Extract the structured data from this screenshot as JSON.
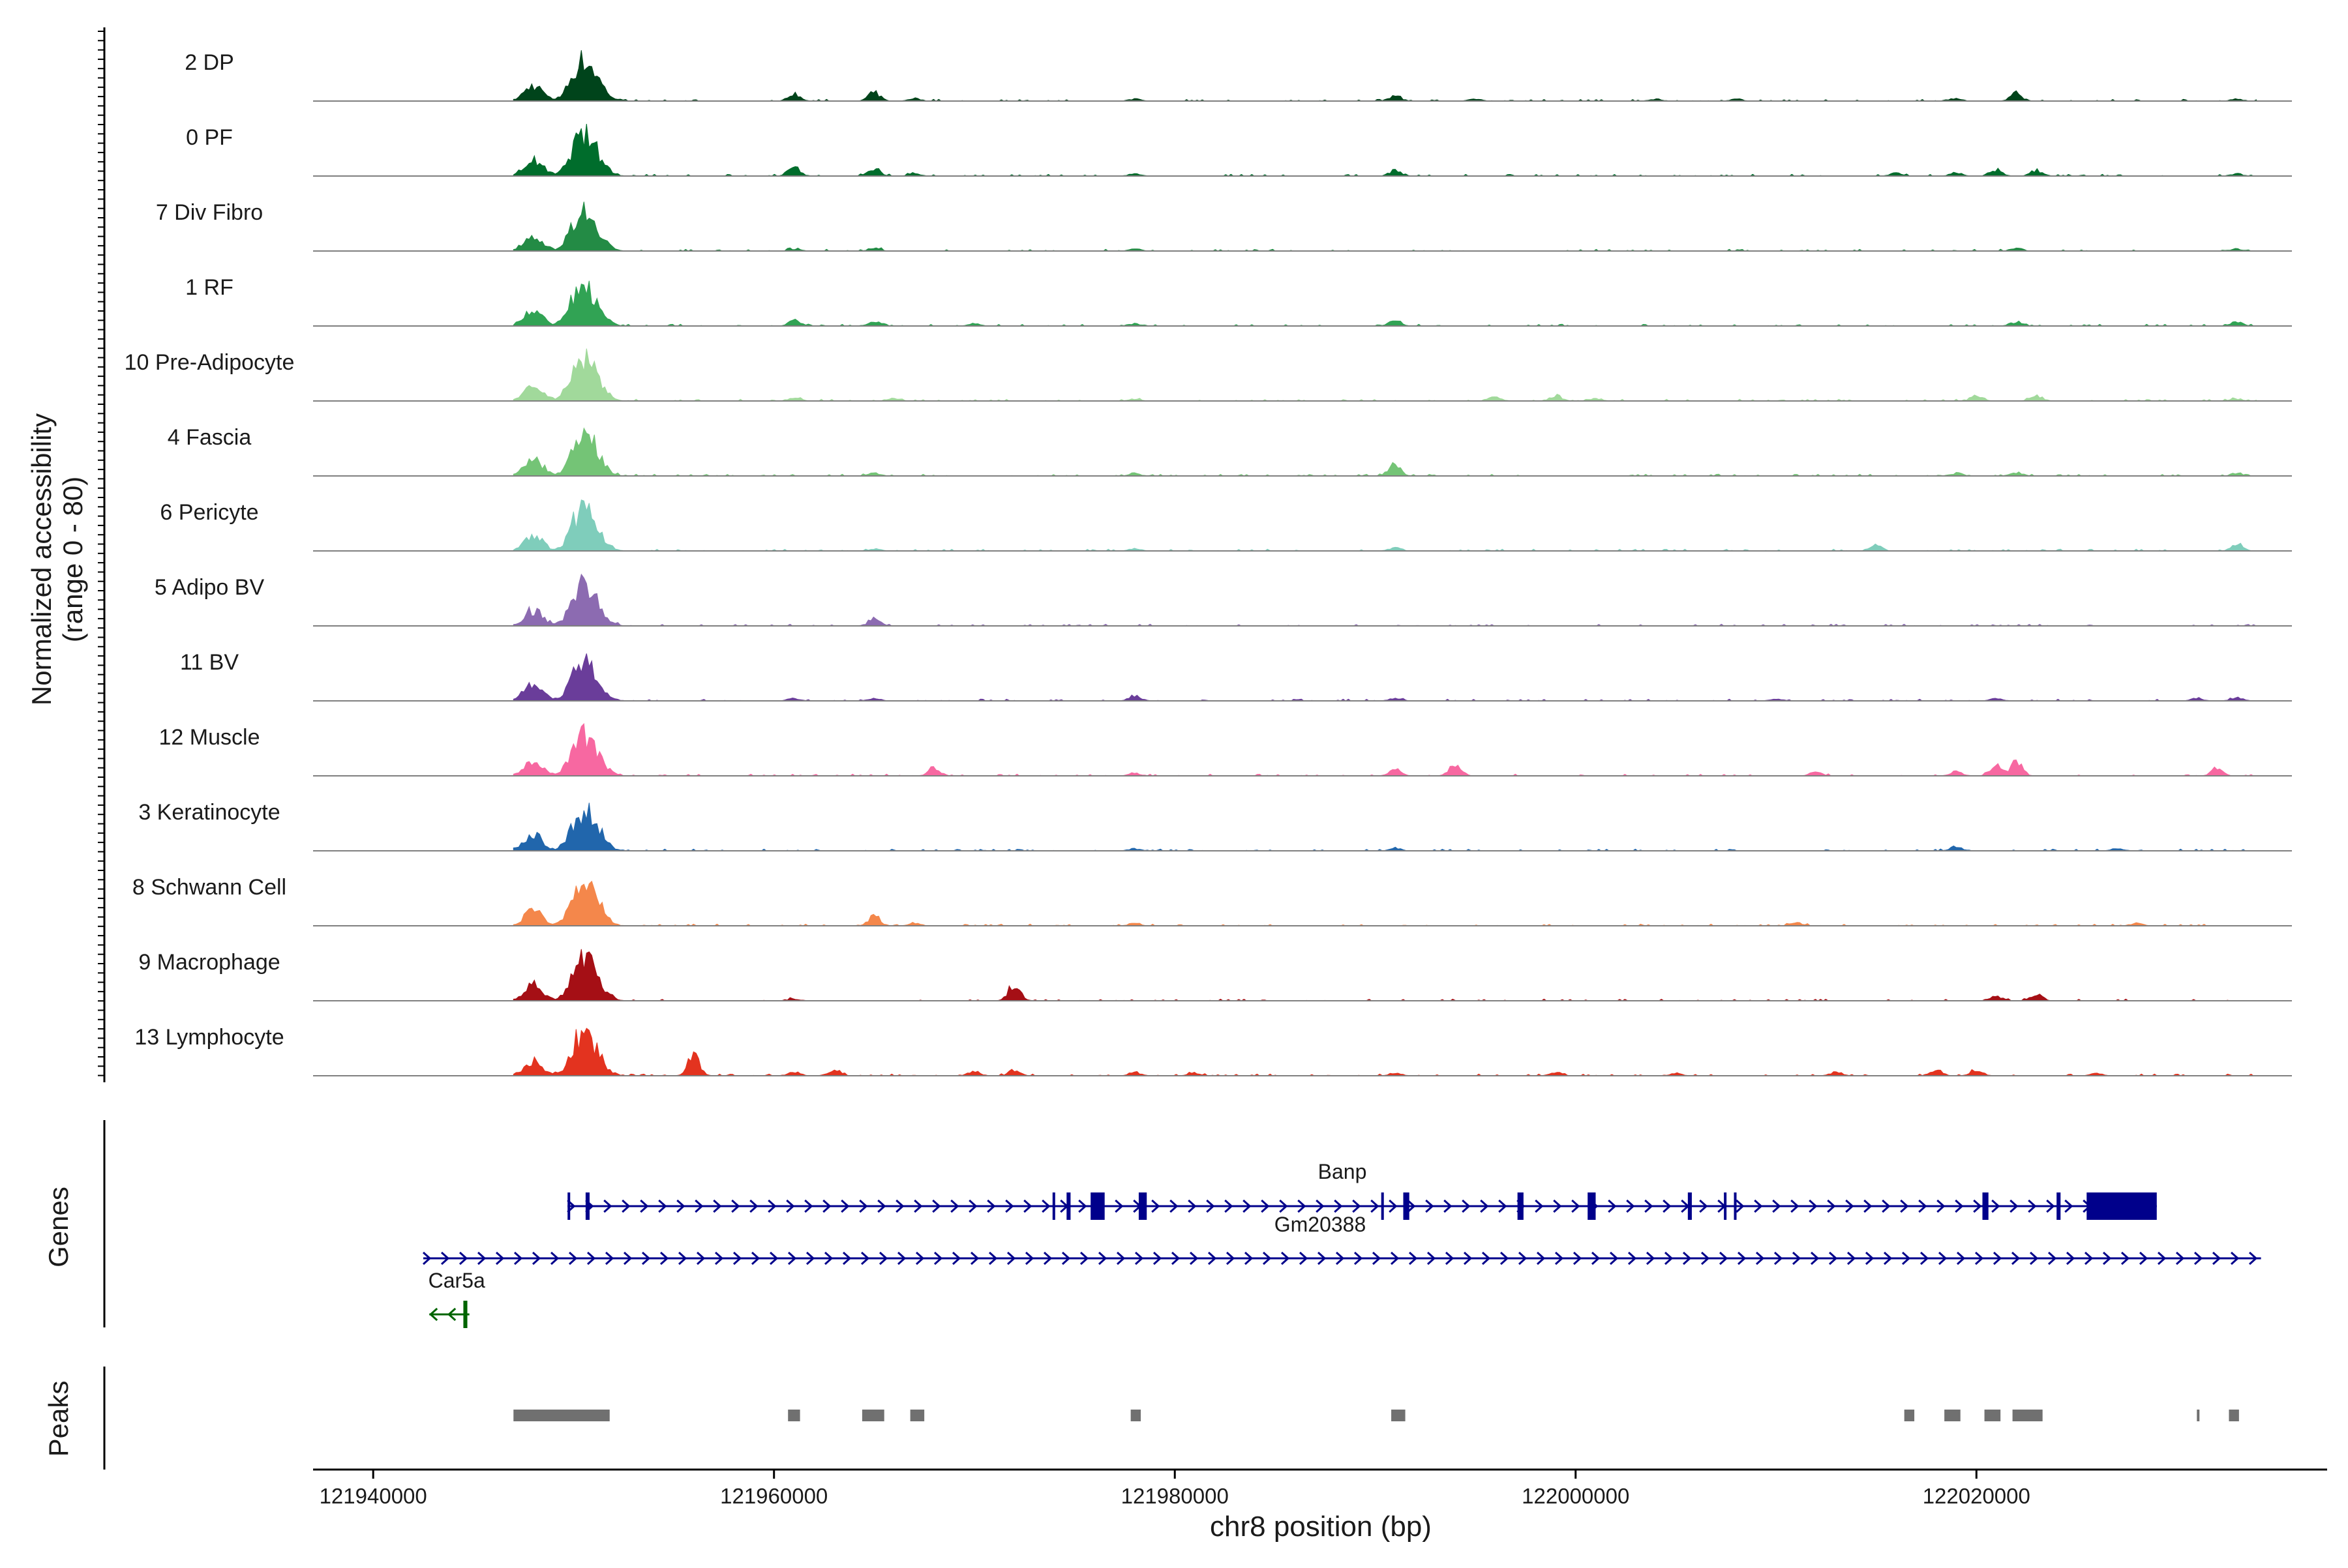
{
  "chart_data": {
    "type": "area",
    "title": "",
    "ylabel_line1": "Normalized accessibility",
    "ylabel_line2": "(range 0 - 80)",
    "xlabel": "chr8 position (bp)",
    "xlim": [
      121937000,
      122037500
    ],
    "ylim": [
      0,
      80
    ],
    "xticks": [
      121940000,
      121960000,
      121980000,
      122000000,
      122020000
    ],
    "xtick_labels": [
      "121940000",
      "121960000",
      "121980000",
      "122000000",
      "122020000"
    ],
    "track_range": [
      121947000,
      122034000
    ],
    "shared_peaks": [
      {
        "pos": 121948000,
        "h": 22
      },
      {
        "pos": 121950200,
        "h": 38
      },
      {
        "pos": 121950800,
        "h": 30
      },
      {
        "pos": 121951300,
        "h": 12
      }
    ],
    "series": [
      {
        "name": "2 DP",
        "color": "#00441b",
        "peaks": [
          {
            "pos": 121961000,
            "h": 10
          },
          {
            "pos": 121965000,
            "h": 12
          },
          {
            "pos": 121967000,
            "h": 4
          },
          {
            "pos": 121978000,
            "h": 3
          },
          {
            "pos": 121991000,
            "h": 8
          },
          {
            "pos": 121995000,
            "h": 3
          },
          {
            "pos": 122004000,
            "h": 3
          },
          {
            "pos": 122008000,
            "h": 3
          },
          {
            "pos": 122019000,
            "h": 4
          },
          {
            "pos": 122022000,
            "h": 10
          },
          {
            "pos": 122033000,
            "h": 3
          }
        ]
      },
      {
        "name": "0 PF",
        "color": "#006d2c",
        "peaks": [
          {
            "pos": 121961000,
            "h": 14
          },
          {
            "pos": 121965000,
            "h": 10
          },
          {
            "pos": 121967000,
            "h": 3
          },
          {
            "pos": 121978000,
            "h": 3
          },
          {
            "pos": 121991000,
            "h": 8
          },
          {
            "pos": 122016000,
            "h": 4
          },
          {
            "pos": 122019000,
            "h": 5
          },
          {
            "pos": 122021000,
            "h": 9
          },
          {
            "pos": 122023000,
            "h": 8
          },
          {
            "pos": 122033000,
            "h": 3
          }
        ]
      },
      {
        "name": "7 Div Fibro",
        "color": "#238b45",
        "peaks": [
          {
            "pos": 121961000,
            "h": 3
          },
          {
            "pos": 121965000,
            "h": 4
          },
          {
            "pos": 121978000,
            "h": 3
          },
          {
            "pos": 122022000,
            "h": 4
          },
          {
            "pos": 122033000,
            "h": 3
          }
        ]
      },
      {
        "name": "1 RF",
        "color": "#31a354",
        "peaks": [
          {
            "pos": 121961000,
            "h": 8
          },
          {
            "pos": 121965000,
            "h": 6
          },
          {
            "pos": 121970000,
            "h": 3
          },
          {
            "pos": 121978000,
            "h": 3
          },
          {
            "pos": 121991000,
            "h": 9
          },
          {
            "pos": 122022000,
            "h": 6
          },
          {
            "pos": 122033000,
            "h": 5
          }
        ]
      },
      {
        "name": "10 Pre-Adipocyte",
        "color": "#a1d99b",
        "peaks": [
          {
            "pos": 121961000,
            "h": 5
          },
          {
            "pos": 121966000,
            "h": 4
          },
          {
            "pos": 121978000,
            "h": 3
          },
          {
            "pos": 121996000,
            "h": 6
          },
          {
            "pos": 121999000,
            "h": 8
          },
          {
            "pos": 122001000,
            "h": 4
          },
          {
            "pos": 122020000,
            "h": 7
          },
          {
            "pos": 122023000,
            "h": 8
          },
          {
            "pos": 122033000,
            "h": 3
          }
        ]
      },
      {
        "name": "4 Fascia",
        "color": "#74c476",
        "peaks": [
          {
            "pos": 121965000,
            "h": 4
          },
          {
            "pos": 121978000,
            "h": 3
          },
          {
            "pos": 121991000,
            "h": 16
          },
          {
            "pos": 122019000,
            "h": 4
          },
          {
            "pos": 122022000,
            "h": 5
          },
          {
            "pos": 122033000,
            "h": 3
          }
        ]
      },
      {
        "name": "6 Pericyte",
        "color": "#7fcdbb",
        "peaks": [
          {
            "pos": 121965000,
            "h": 3
          },
          {
            "pos": 121978000,
            "h": 3
          },
          {
            "pos": 121991000,
            "h": 5
          },
          {
            "pos": 122015000,
            "h": 7
          },
          {
            "pos": 122033000,
            "h": 9
          }
        ]
      },
      {
        "name": "5 Adipo BV",
        "color": "#8c6bb1",
        "peaks": [
          {
            "pos": 121965000,
            "h": 9
          }
        ]
      },
      {
        "name": "11 BV",
        "color": "#6a3d9a",
        "peaks": [
          {
            "pos": 121961000,
            "h": 4
          },
          {
            "pos": 121965000,
            "h": 4
          },
          {
            "pos": 121978000,
            "h": 8
          },
          {
            "pos": 121991000,
            "h": 4
          },
          {
            "pos": 122010000,
            "h": 3
          },
          {
            "pos": 122021000,
            "h": 4
          },
          {
            "pos": 122031000,
            "h": 4
          },
          {
            "pos": 122033000,
            "h": 5
          }
        ]
      },
      {
        "name": "12 Muscle",
        "color": "#f768a1",
        "peaks": [
          {
            "pos": 121968000,
            "h": 10
          },
          {
            "pos": 121978000,
            "h": 4
          },
          {
            "pos": 121991000,
            "h": 10
          },
          {
            "pos": 121994000,
            "h": 16
          },
          {
            "pos": 122012000,
            "h": 5
          },
          {
            "pos": 122019000,
            "h": 6
          },
          {
            "pos": 122021000,
            "h": 14
          },
          {
            "pos": 122022000,
            "h": 20
          },
          {
            "pos": 122032000,
            "h": 9
          }
        ]
      },
      {
        "name": "3 Keratinocyte",
        "color": "#2166ac",
        "peaks": [
          {
            "pos": 121978000,
            "h": 3
          },
          {
            "pos": 121991000,
            "h": 4
          },
          {
            "pos": 122019000,
            "h": 6
          },
          {
            "pos": 122027000,
            "h": 3
          }
        ]
      },
      {
        "name": "8 Schwann Cell",
        "color": "#f4874b",
        "peaks": [
          {
            "pos": 121965000,
            "h": 14
          },
          {
            "pos": 121967000,
            "h": 4
          },
          {
            "pos": 121978000,
            "h": 4
          },
          {
            "pos": 122011000,
            "h": 5
          },
          {
            "pos": 122028000,
            "h": 4
          }
        ]
      },
      {
        "name": "9 Macrophage",
        "color": "#a50f15",
        "peaks": [
          {
            "pos": 121961000,
            "h": 3
          },
          {
            "pos": 121972000,
            "h": 24
          },
          {
            "pos": 122021000,
            "h": 6
          },
          {
            "pos": 122023000,
            "h": 9
          }
        ]
      },
      {
        "name": "13 Lymphocyte",
        "color": "#e3331f",
        "peaks": [
          {
            "pos": 121945000,
            "h": 5
          },
          {
            "pos": 121956000,
            "h": 30
          },
          {
            "pos": 121961000,
            "h": 6
          },
          {
            "pos": 121963000,
            "h": 9
          },
          {
            "pos": 121970000,
            "h": 6
          },
          {
            "pos": 121972000,
            "h": 7
          },
          {
            "pos": 121978000,
            "h": 5
          },
          {
            "pos": 121981000,
            "h": 4
          },
          {
            "pos": 121991000,
            "h": 4
          },
          {
            "pos": 121999000,
            "h": 5
          },
          {
            "pos": 122005000,
            "h": 3
          },
          {
            "pos": 122013000,
            "h": 5
          },
          {
            "pos": 122018000,
            "h": 8
          },
          {
            "pos": 122020000,
            "h": 9
          },
          {
            "pos": 122026000,
            "h": 3
          }
        ]
      }
    ],
    "genes": {
      "panel_label": "Genes",
      "items": [
        {
          "name": "Banp",
          "start": 121949700,
          "end": 122029000,
          "strand": "+",
          "color": "#00008b",
          "exons": [
            [
              121949700,
              121949800
            ],
            [
              121950600,
              121950800
            ],
            [
              121973900,
              121974000
            ],
            [
              121974600,
              121974800
            ],
            [
              121975800,
              121976500
            ],
            [
              121978200,
              121978600
            ],
            [
              121990300,
              121990400
            ],
            [
              121991400,
              121991700
            ],
            [
              121997100,
              121997400
            ],
            [
              122000600,
              122001000
            ],
            [
              122005600,
              122005800
            ],
            [
              122007400,
              122007500
            ],
            [
              122007900,
              122008000
            ],
            [
              122020300,
              122020600
            ],
            [
              122024000,
              122024200
            ],
            [
              122025500,
              122029000
            ]
          ]
        },
        {
          "name": "Gm20388",
          "start": 121942500,
          "end": 122034200,
          "strand": "+",
          "color": "#00008b",
          "exons": []
        },
        {
          "name": "Car5a",
          "start": 121942800,
          "end": 121944800,
          "strand": "-",
          "color": "#006400",
          "exons": [
            [
              121944500,
              121944700
            ]
          ]
        }
      ]
    },
    "peaks_track": {
      "panel_label": "Peaks",
      "regions": [
        [
          121947000,
          121951800
        ],
        [
          121960700,
          121961300
        ],
        [
          121964400,
          121965500
        ],
        [
          121966800,
          121967500
        ],
        [
          121977800,
          121978300
        ],
        [
          121990800,
          121991500
        ],
        [
          122016400,
          122016900
        ],
        [
          122018400,
          122019200
        ],
        [
          122020400,
          122021200
        ],
        [
          122021800,
          122023300
        ],
        [
          122031000,
          122031100
        ],
        [
          122032600,
          122033100
        ]
      ]
    }
  }
}
